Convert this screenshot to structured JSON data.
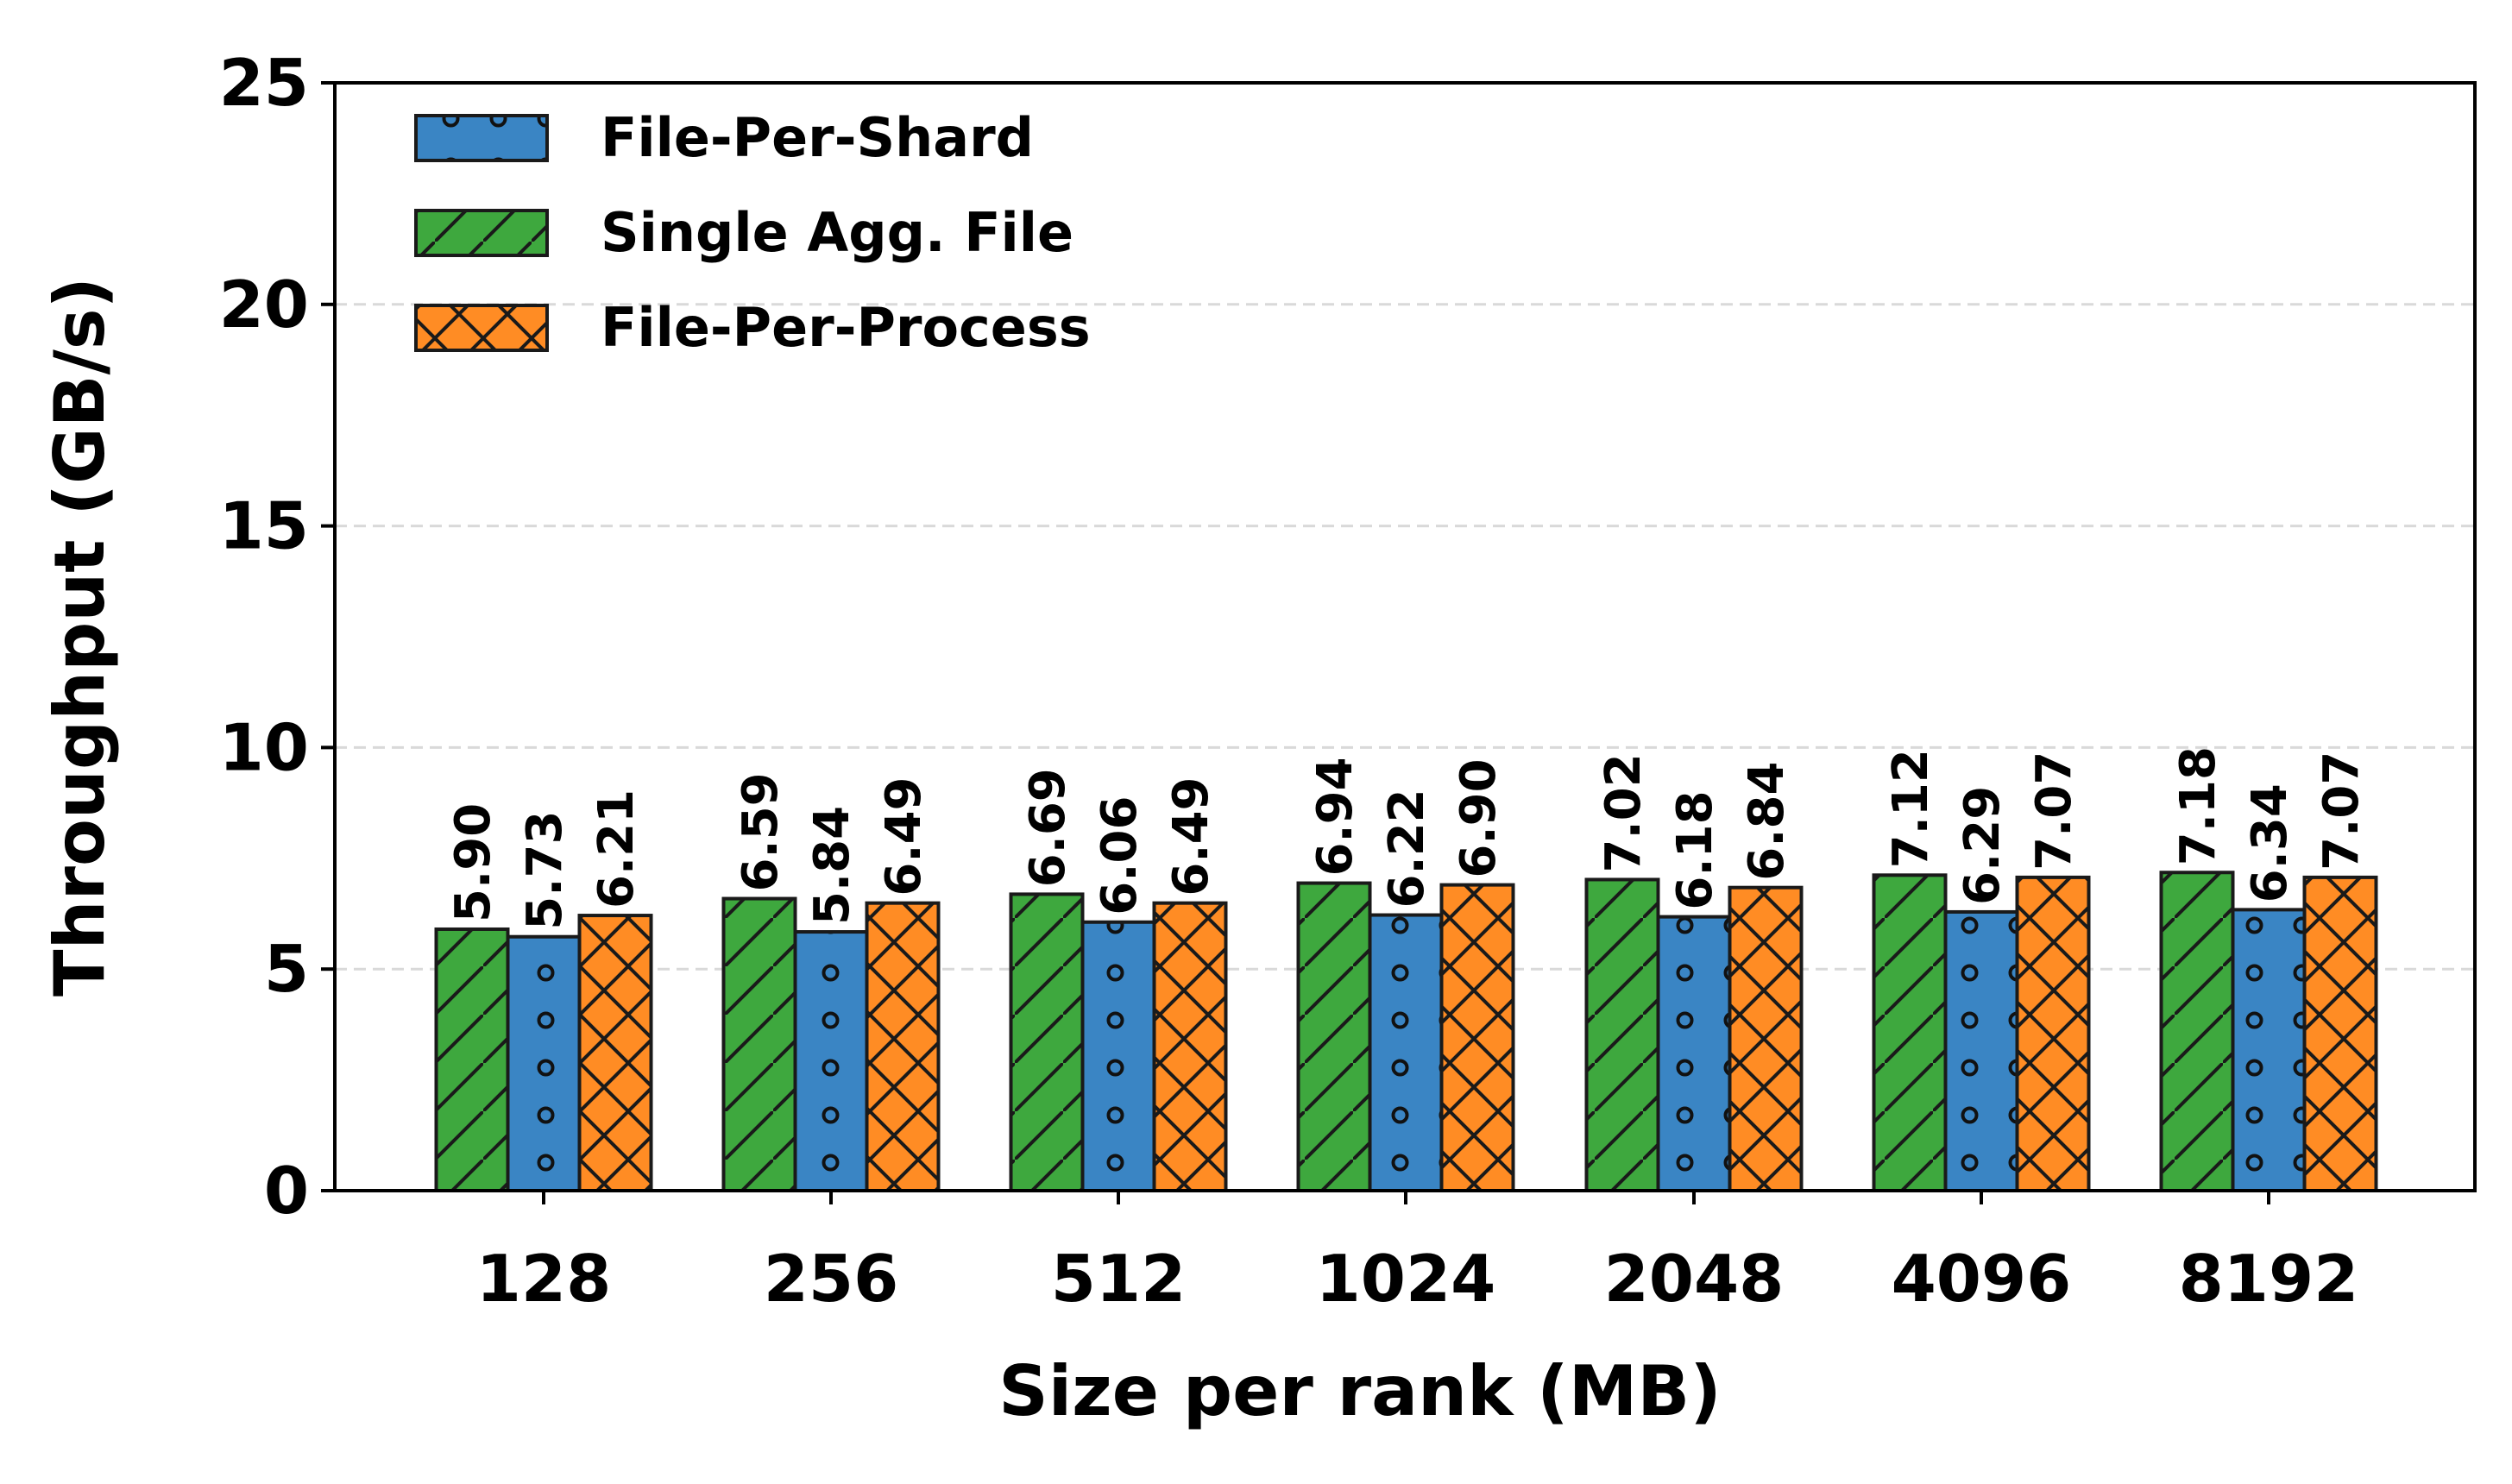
{
  "chart_data": {
    "type": "bar",
    "title": "",
    "xlabel": "Size per rank (MB)",
    "ylabel": "Throughput (GB/s)",
    "ylim": [
      0,
      25
    ],
    "yticks": [
      0,
      5,
      10,
      15,
      20,
      25
    ],
    "grid": "horizontal dashed",
    "legend_position": "top-left",
    "categories": [
      "128",
      "256",
      "512",
      "1024",
      "2048",
      "4096",
      "8192"
    ],
    "series": [
      {
        "name": "Single Agg. File",
        "color": "#3ea83e",
        "pattern": "diagonal-hatch",
        "values": [
          5.9,
          6.59,
          6.69,
          6.94,
          7.02,
          7.12,
          7.18
        ],
        "labels": [
          "5.90",
          "6.59",
          "6.69",
          "6.94",
          "7.02",
          "7.12",
          "7.18"
        ]
      },
      {
        "name": "File-Per-Shard",
        "color": "#3a85c4",
        "pattern": "circles",
        "values": [
          5.73,
          5.84,
          6.06,
          6.22,
          6.18,
          6.29,
          6.34
        ],
        "labels": [
          "5.73",
          "5.84",
          "6.06",
          "6.22",
          "6.18",
          "6.29",
          "6.34"
        ]
      },
      {
        "name": "File-Per-Process",
        "color": "#ff8c24",
        "pattern": "cross-hatch",
        "values": [
          6.21,
          6.49,
          6.49,
          6.9,
          6.84,
          7.07,
          7.07
        ],
        "labels": [
          "6.21",
          "6.49",
          "6.49",
          "6.90",
          "6.84",
          "7.07",
          "7.07"
        ]
      }
    ],
    "legend_order": [
      "File-Per-Shard",
      "Single Agg. File",
      "File-Per-Process"
    ]
  }
}
